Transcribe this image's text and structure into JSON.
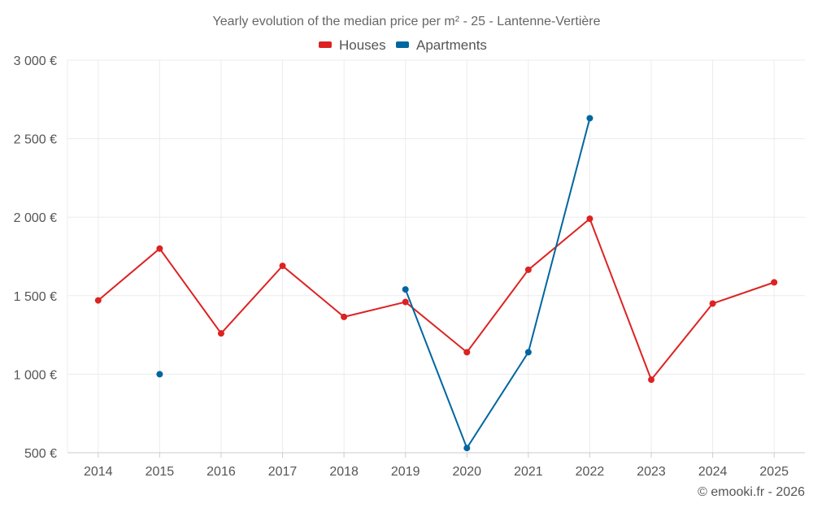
{
  "chart_data": {
    "type": "line",
    "title": "Yearly evolution of the median price per m² - 25 - Lantenne-Vertière",
    "xlabel": "",
    "ylabel": "",
    "categories": [
      "2014",
      "2015",
      "2016",
      "2017",
      "2018",
      "2019",
      "2020",
      "2021",
      "2022",
      "2023",
      "2024",
      "2025"
    ],
    "ylim": [
      500,
      3000
    ],
    "yticks": [
      500,
      1000,
      1500,
      2000,
      2500,
      3000
    ],
    "ytick_labels": [
      "500 €",
      "1 000 €",
      "1 500 €",
      "2 000 €",
      "2 500 €",
      "3 000 €"
    ],
    "grid": true,
    "legend_position": "top-center",
    "series": [
      {
        "name": "Houses",
        "color": "#dd2222",
        "values": [
          1470,
          1800,
          1260,
          1690,
          1365,
          1460,
          1140,
          1665,
          1990,
          965,
          1450,
          1585
        ]
      },
      {
        "name": "Apartments",
        "color": "#0066a0",
        "values": [
          null,
          1000,
          null,
          null,
          null,
          1540,
          530,
          1140,
          2630,
          null,
          null,
          null
        ]
      }
    ],
    "credit": "© emooki.fr - 2026"
  }
}
